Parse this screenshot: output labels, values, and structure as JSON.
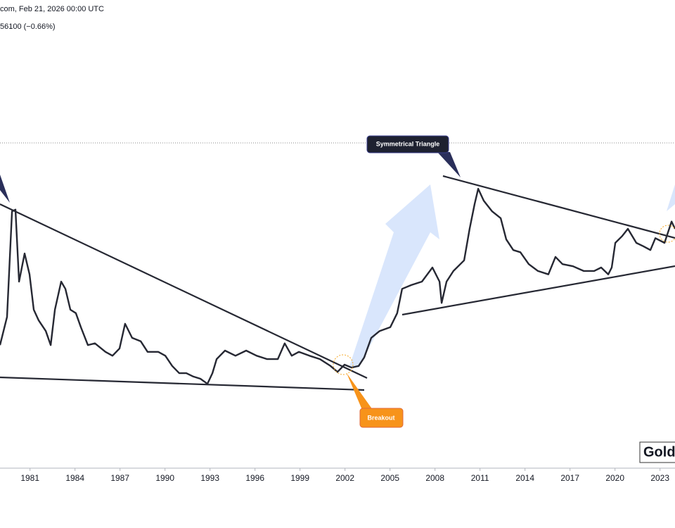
{
  "header": {
    "source_time": "com, Feb 21, 2026 00:00 UTC",
    "change": "56100 (−0.66%)"
  },
  "logo": "Gold",
  "chart_data": {
    "type": "line",
    "color": "#262833",
    "xlim": [
      1979,
      2024
    ],
    "ylim": [
      0,
      100
    ],
    "xticks": [
      1981,
      1984,
      1987,
      1990,
      1993,
      1996,
      1999,
      2002,
      2005,
      2008,
      2011,
      2014,
      2017,
      2020,
      2023
    ],
    "annotations": [
      "Symmetrical Triangle",
      "Breakout"
    ],
    "x": [
      1979.0,
      1979.47,
      1979.8,
      1980.03,
      1980.27,
      1980.64,
      1980.97,
      1981.25,
      1981.58,
      1982.05,
      1982.38,
      1982.66,
      1983.08,
      1983.36,
      1983.69,
      1984.06,
      1984.39,
      1984.86,
      1985.33,
      1986.03,
      1986.5,
      1986.97,
      1987.34,
      1987.81,
      1988.38,
      1988.84,
      1989.55,
      1990.02,
      1990.48,
      1990.95,
      1991.42,
      1991.89,
      1992.36,
      1992.83,
      1993.16,
      1993.44,
      1994.0,
      1994.7,
      1995.41,
      1996.11,
      1996.81,
      1997.52,
      1997.98,
      1998.45,
      1998.92,
      1999.63,
      2000.33,
      2001.03,
      2001.5,
      2001.97,
      2002.44,
      2002.91,
      2003.28,
      2003.75,
      2004.31,
      2005.02,
      2005.48,
      2005.81,
      2006.42,
      2007.13,
      2007.83,
      2008.3,
      2008.44,
      2008.77,
      2009.23,
      2009.94,
      2010.31,
      2010.64,
      2010.88,
      2011.25,
      2011.81,
      2012.38,
      2012.75,
      2013.22,
      2013.69,
      2014.25,
      2014.86,
      2015.56,
      2016.03,
      2016.5,
      2017.2,
      2017.91,
      2018.61,
      2019.08,
      2019.55,
      2019.78,
      2020.02,
      2020.48,
      2020.86,
      2021.42,
      2021.89,
      2022.36,
      2022.69,
      2023.3,
      2023.77,
      2024.0
    ],
    "values": [
      28.9,
      35.5,
      60.3,
      60.7,
      43.8,
      50.4,
      45.5,
      37.2,
      34.7,
      32.2,
      28.9,
      37.2,
      43.8,
      42.1,
      37.2,
      36.4,
      33.1,
      28.9,
      29.3,
      27.3,
      26.4,
      28.1,
      33.9,
      30.6,
      29.8,
      27.3,
      27.3,
      26.4,
      24.0,
      22.3,
      22.3,
      21.5,
      21.0,
      19.8,
      22.3,
      25.6,
      27.6,
      26.4,
      27.6,
      26.4,
      25.6,
      25.6,
      29.3,
      26.4,
      27.3,
      26.4,
      25.6,
      24.0,
      22.6,
      24.3,
      23.6,
      24.0,
      26.0,
      30.6,
      32.2,
      33.1,
      36.4,
      42.1,
      43.0,
      43.8,
      47.1,
      43.8,
      38.8,
      43.8,
      46.3,
      48.8,
      56.2,
      62.0,
      65.6,
      62.8,
      60.3,
      58.7,
      53.7,
      51.2,
      50.7,
      47.9,
      46.3,
      45.5,
      49.6,
      47.9,
      47.4,
      46.3,
      46.3,
      47.1,
      45.5,
      47.1,
      52.9,
      54.5,
      56.2,
      52.9,
      52.1,
      51.2,
      54.0,
      52.9,
      57.9,
      56.2
    ]
  }
}
